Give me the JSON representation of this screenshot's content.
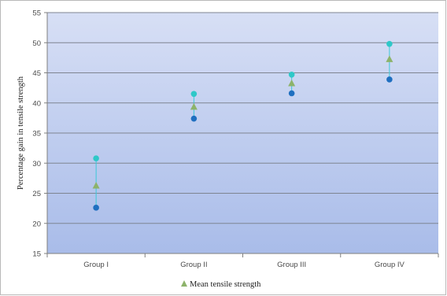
{
  "chart_data": {
    "type": "scatter",
    "title": "",
    "xlabel": "",
    "ylabel": "Percentage gain in tensile strength",
    "ylim": [
      15,
      55
    ],
    "yticks": [
      15,
      20,
      25,
      30,
      35,
      40,
      45,
      50,
      55
    ],
    "grid": true,
    "legend_position": "bottom",
    "categories": [
      "Group I",
      "Group II",
      "Group III",
      "Group IV"
    ],
    "series": [
      {
        "key": "high",
        "values": [
          30.8,
          41.5,
          44.7,
          49.8
        ],
        "color": "#2ec8c8",
        "marker": "circle"
      },
      {
        "key": "mean",
        "name": "Mean tensile strength",
        "values": [
          26.3,
          39.4,
          43.3,
          47.3
        ],
        "color": "#8db36a",
        "marker": "triangle"
      },
      {
        "key": "low",
        "values": [
          22.6,
          37.4,
          41.6,
          43.9
        ],
        "color": "#1f6fc0",
        "marker": "circle"
      }
    ],
    "range_line_color": "#3cc8d8"
  }
}
